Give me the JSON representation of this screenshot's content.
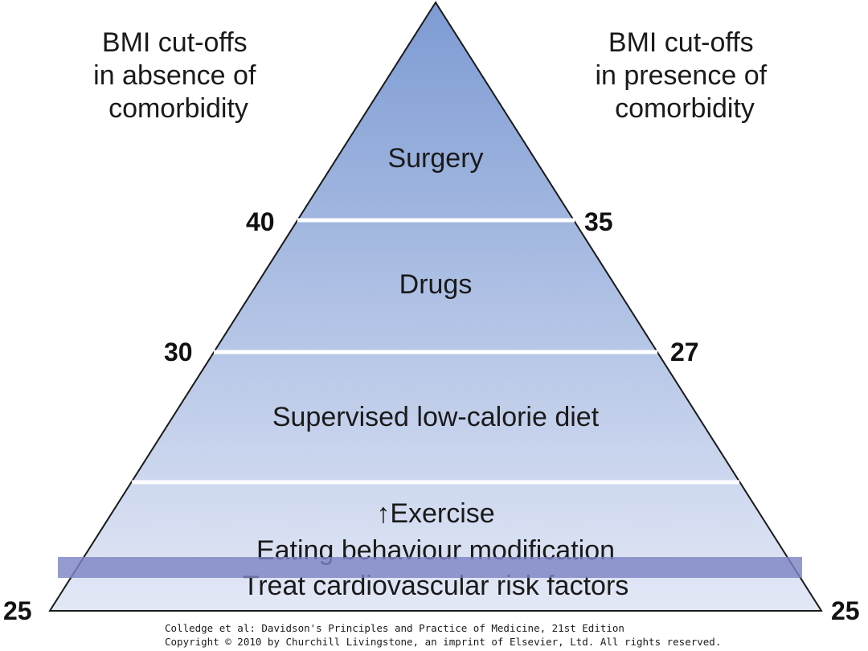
{
  "headings": {
    "left": [
      "BMI cut-offs",
      "in absence of",
      "comorbidity"
    ],
    "right": [
      "BMI cut-offs",
      "in presence of",
      "comorbidity"
    ]
  },
  "tiers": {
    "surgery": "Surgery",
    "drugs": "Drugs",
    "diet": "Supervised low-calorie diet",
    "base": [
      "↑Exercise",
      "Eating behaviour modification",
      "Treat cardiovascular risk factors"
    ]
  },
  "cutoffs": {
    "left": {
      "surgery": "40",
      "drugs": "30",
      "base": "25"
    },
    "right": {
      "surgery": "35",
      "drugs": "27",
      "base": "25"
    }
  },
  "credit": {
    "line1": "Colledge et al: Davidson's Principles and Practice of Medicine, 21st Edition",
    "line2": "Copyright © 2010 by Churchill Livingstone, an imprint of Elsevier, Ltd. All rights reserved."
  },
  "colors": {
    "apex": "#7d9bd3",
    "base": "#e3e8f6",
    "divider": "#ffffff",
    "highlight": "#7e84c4"
  }
}
